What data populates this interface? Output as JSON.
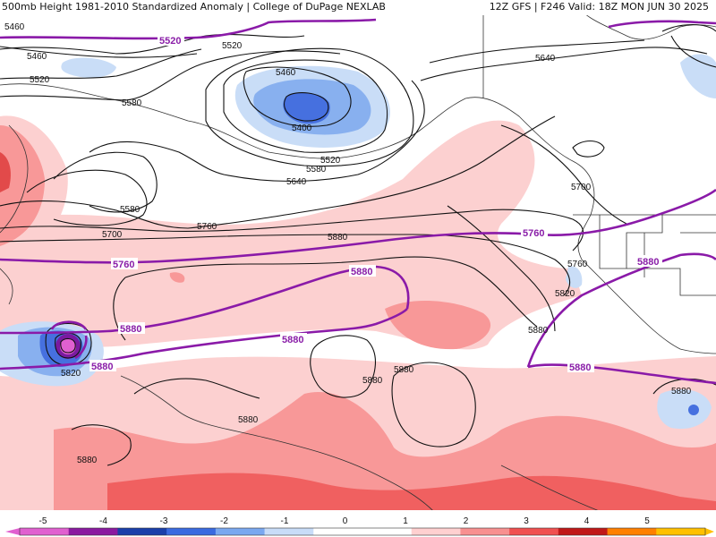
{
  "header": {
    "left": "500mb Height 1981-2010 Standardized Anomaly | College of DuPage NEXLAB",
    "right": "12Z GFS | F246 Valid: 18Z MON JUN 30 2025"
  },
  "contour_labels": {
    "l5460_a": "5460",
    "l5460_b": "5460",
    "l5460_c": "5460",
    "l5520_a": "5520",
    "l5520_b": "5520",
    "l5520_c": "5520",
    "l5580_a": "5580",
    "l5580_b": "5580",
    "l5580_c": "5580",
    "l5400": "5400",
    "l5640_a": "5640",
    "l5640_b": "5640",
    "l5700_a": "5700",
    "l5700_b": "5700",
    "l5760_a": "5760",
    "l5760_b": "5760",
    "l5820_a": "5820",
    "l5820_b": "5820",
    "l5880_a": "5880",
    "l5880_b": "5880",
    "l5880_c": "5880",
    "l5880_d": "5880",
    "l5880_e": "5880",
    "l5880_f": "5880",
    "l5880_g": "5880"
  },
  "bold_labels": {
    "b5520": "5520",
    "b5760_a": "5760",
    "b5760_b": "5760",
    "b5880_a": "5880",
    "b5880_b": "5880",
    "b5880_c": "5880",
    "b5880_d": "5880",
    "b5880_e": "5880",
    "b5880_f": "5880"
  },
  "colorbar": {
    "ticks": [
      "-5",
      "-4",
      "-3",
      "-2",
      "-1",
      "0",
      "1",
      "2",
      "3",
      "4",
      "5"
    ],
    "colors": [
      "#e060d0",
      "#8a1aa0",
      "#1a3faa",
      "#3a6ae0",
      "#7aa8f0",
      "#c8dcf8",
      "#ffffff",
      "#ffffff",
      "#ffd0d0",
      "#f89090",
      "#f05050",
      "#c01818",
      "#ff8000",
      "#ffc000"
    ]
  },
  "anomaly_colors": {
    "pos1": "#fcd0d0",
    "pos2": "#f89898",
    "pos3": "#f06060",
    "neg1": "#c9ddf7",
    "neg2": "#88b0ef",
    "neg3": "#4670df",
    "bold_contour": "#8a1aa8"
  }
}
